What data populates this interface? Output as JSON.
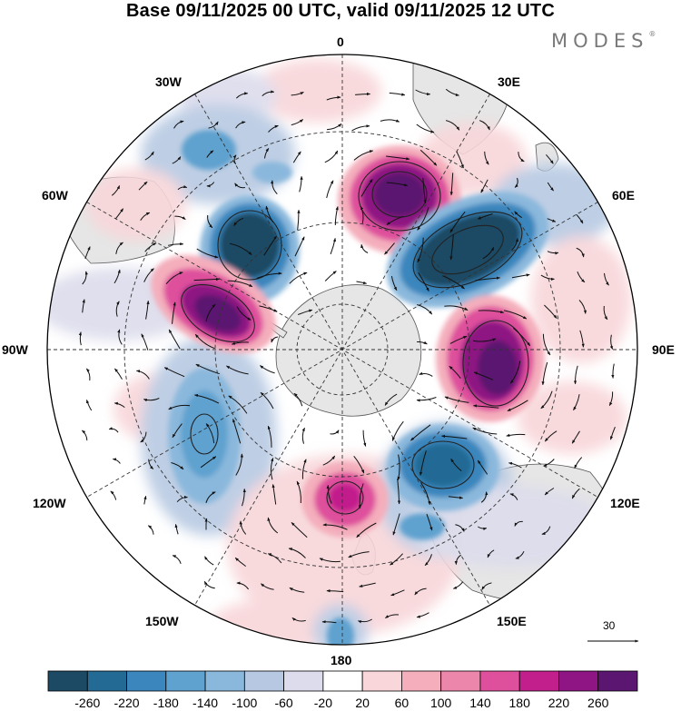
{
  "title": "Base 09/11/2025 00 UTC, valid 09/11/2025 12 UTC",
  "brand": {
    "name": "MODES",
    "mark": "®"
  },
  "longitude_labels": {
    "lon0": "0",
    "lon30e": "30E",
    "lon60e": "60E",
    "lon90e": "90E",
    "lon120e": "120E",
    "lon150e": "150E",
    "lon180": "180",
    "lon150w": "150W",
    "lon120w": "120W",
    "lon90w": "90W",
    "lon60w": "60W",
    "lon30w": "30W"
  },
  "vector_reference": {
    "label": "30"
  },
  "colorbar": {
    "labels": [
      "-260",
      "-220",
      "-180",
      "-140",
      "-100",
      "-60",
      "-20",
      "20",
      "60",
      "100",
      "140",
      "180",
      "220",
      "260"
    ],
    "colors": [
      "#1c4a64",
      "#236a95",
      "#3a86bd",
      "#5fa1cf",
      "#8ab8dc",
      "#b7c9e2",
      "#dcdcec",
      "#ffffff",
      "#f8d6d9",
      "#f4aebc",
      "#ec86aa",
      "#de509c",
      "#c21f8c",
      "#8e1583",
      "#5a1670"
    ]
  },
  "colors": {
    "land": "#e6e6e6",
    "coast": "#555555"
  }
}
